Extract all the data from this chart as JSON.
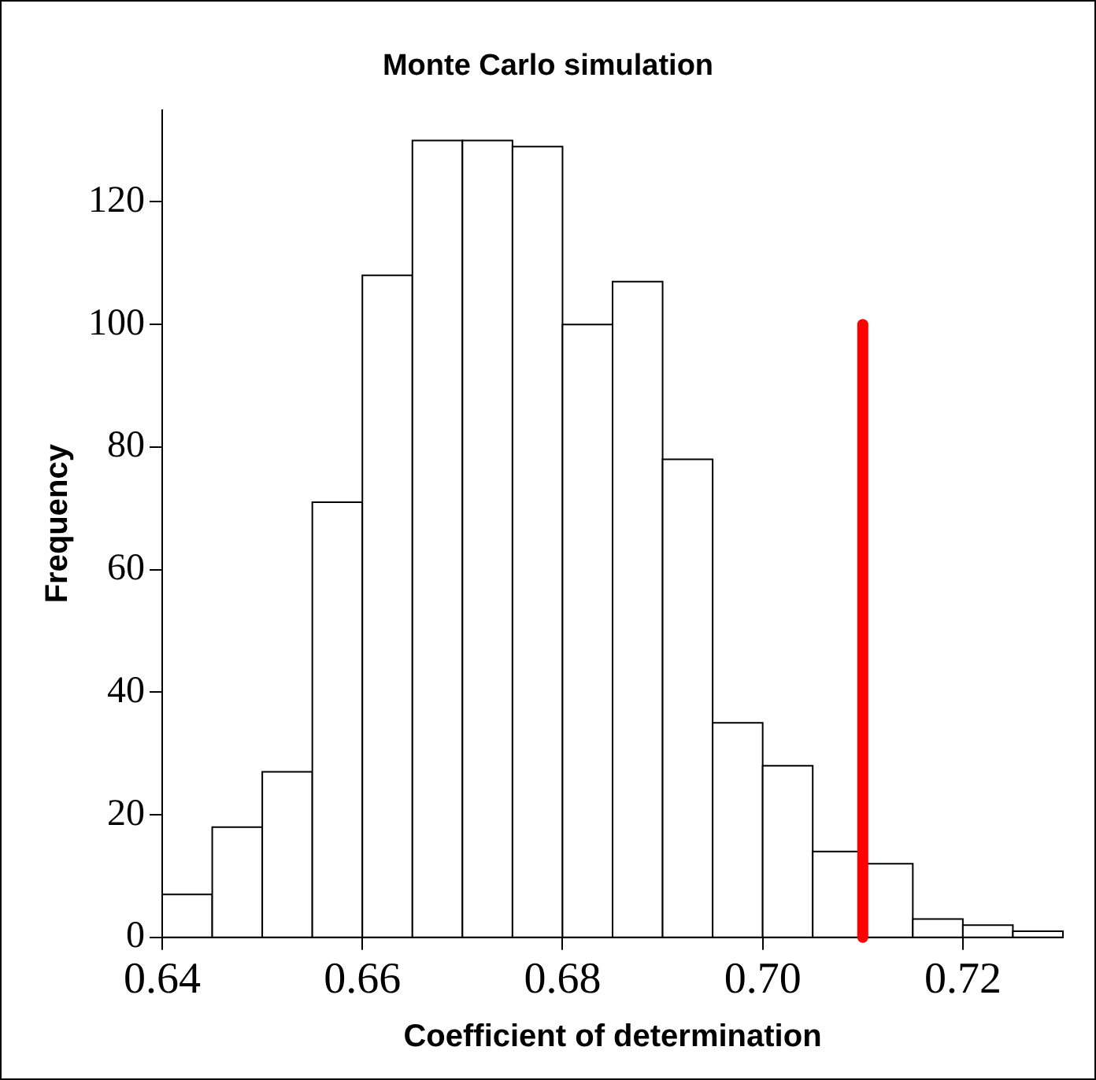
{
  "chart_data": {
    "type": "histogram",
    "title": "Monte Carlo simulation",
    "xlabel": "Coefficient of determination",
    "ylabel": "Frequency",
    "bins": [
      0.64,
      0.645,
      0.65,
      0.655,
      0.66,
      0.665,
      0.67,
      0.675,
      0.68,
      0.685,
      0.69,
      0.695,
      0.7,
      0.705,
      0.71,
      0.715,
      0.72,
      0.725,
      0.73
    ],
    "series": [
      {
        "type": "histogram",
        "color": "#ffffff",
        "values": [
          7,
          18,
          27,
          71,
          108,
          130,
          130,
          129,
          100,
          107,
          78,
          35,
          28,
          14,
          12,
          3,
          2,
          1
        ]
      },
      {
        "type": "line",
        "color": "#ff0000",
        "x": [
          0.71,
          0.71
        ],
        "values": [
          0,
          100
        ]
      }
    ],
    "xlim": [
      0.64,
      0.73
    ],
    "ylim": [
      0,
      135
    ],
    "xticks": [
      0.64,
      0.66,
      0.68,
      {
        "value": 0.7,
        "label": "0.70"
      },
      0.72
    ],
    "yticks": [
      0,
      20,
      40,
      60,
      80,
      100,
      120
    ]
  }
}
